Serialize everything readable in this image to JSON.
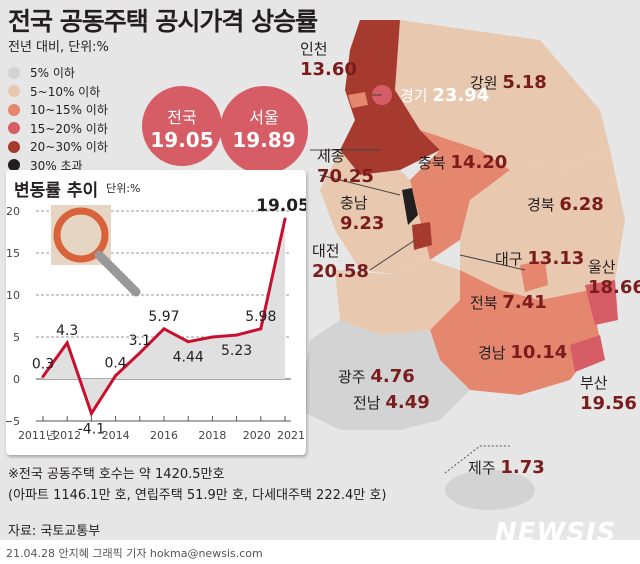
{
  "title": "전국 공동주택 공시가격 상승률",
  "subtitle": "전년 대비, 단위:%",
  "legend": [
    {
      "label": "5% 이하",
      "color": "#d3d3d3"
    },
    {
      "label": "5~10% 이하",
      "color": "#e8c9b0"
    },
    {
      "label": "10~15% 이하",
      "color": "#e5866e"
    },
    {
      "label": "15~20% 이하",
      "color": "#d65c66"
    },
    {
      "label": "20~30% 이하",
      "color": "#a63a2e"
    },
    {
      "label": "30% 초과",
      "color": "#231f20"
    }
  ],
  "highlights": [
    {
      "name": "전국",
      "value": "19.05"
    },
    {
      "name": "서울",
      "value": "19.89"
    }
  ],
  "regions": [
    {
      "name": "인천",
      "value": "13.60"
    },
    {
      "name": "경기",
      "value": "23.94"
    },
    {
      "name": "강원",
      "value": "5.18"
    },
    {
      "name": "세종",
      "value": "70.25"
    },
    {
      "name": "충북",
      "value": "14.20"
    },
    {
      "name": "충남",
      "value": "9.23"
    },
    {
      "name": "경북",
      "value": "6.28"
    },
    {
      "name": "대전",
      "value": "20.58"
    },
    {
      "name": "대구",
      "value": "13.13"
    },
    {
      "name": "울산",
      "value": "18.66"
    },
    {
      "name": "전북",
      "value": "7.41"
    },
    {
      "name": "경남",
      "value": "10.14"
    },
    {
      "name": "광주",
      "value": "4.76"
    },
    {
      "name": "부산",
      "value": "19.56"
    },
    {
      "name": "전남",
      "value": "4.49"
    },
    {
      "name": "제주",
      "value": "1.73"
    }
  ],
  "chart_panel": {
    "title": "변동률 추이",
    "unit": "단위:%"
  },
  "chart_data": {
    "type": "line",
    "x": [
      2011,
      2012,
      2013,
      2014,
      2015,
      2016,
      2017,
      2018,
      2019,
      2020,
      2021
    ],
    "values": [
      0.3,
      4.3,
      -4.1,
      0.4,
      3.1,
      5.97,
      4.44,
      5.0,
      5.23,
      5.98,
      19.05
    ],
    "data_labels": [
      "0.3",
      "4.3",
      "-4.1",
      "0.4",
      "3.1",
      "5.97",
      "4.44",
      "",
      "5.23",
      "5.98",
      "19.05"
    ],
    "ylim": [
      -5,
      20
    ],
    "yticks": [
      "20",
      "15",
      "10",
      "5",
      "0",
      "−5"
    ],
    "xticks": [
      "2011년",
      "2012",
      "2014",
      "2016",
      "2018",
      "2020",
      "2021"
    ],
    "grid": true,
    "line_color": "#c8102e"
  },
  "notes": [
    "※전국 공동주택 호수는 약 1420.5만호",
    "(아파트 1146.1만 호, 연립주택 51.9만 호, 다세대주택 222.4만 호)"
  ],
  "source": "자료: 국토교통부",
  "credit": "21.04.28 안지혜 그래픽 기자 hokma@newsis.com",
  "logo": "NEWSIS"
}
